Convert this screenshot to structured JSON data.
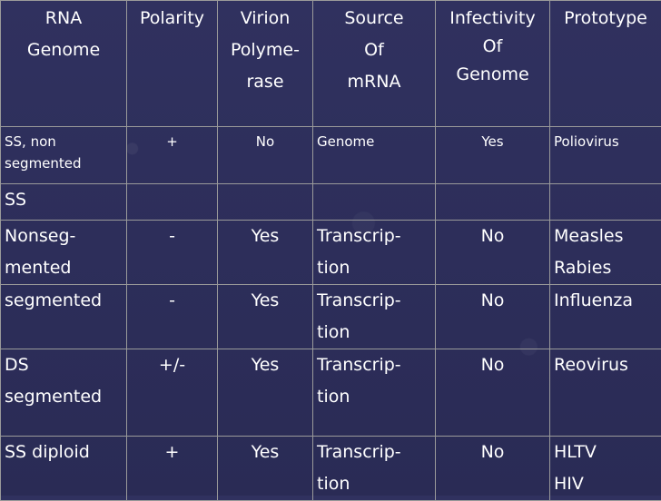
{
  "columns": [
    [
      "RNA",
      "Genome"
    ],
    [
      "Polarity"
    ],
    [
      "Virion",
      "Polyme-",
      "rase"
    ],
    [
      "Source",
      "Of",
      "mRNA"
    ],
    [
      "Infectivity",
      "Of",
      "Genome"
    ],
    [
      "Prototype"
    ]
  ],
  "rows": [
    {
      "genome": [
        "SS, non",
        "segmented"
      ],
      "polarity": "+",
      "polymerase": "No",
      "source": [
        "Genome"
      ],
      "infectivity": "Yes",
      "prototype": [
        "Poliovirus"
      ]
    },
    {
      "genome": [
        "SS"
      ],
      "polarity": "",
      "polymerase": "",
      "source": [
        ""
      ],
      "infectivity": "",
      "prototype": [
        ""
      ]
    },
    {
      "genome": [
        "Nonseg-",
        "mented"
      ],
      "polarity": "-",
      "polymerase": "Yes",
      "source": [
        "Transcrip-",
        "tion"
      ],
      "infectivity": "No",
      "prototype": [
        "Measles",
        "Rabies"
      ]
    },
    {
      "genome": [
        "segmented"
      ],
      "polarity": "-",
      "polymerase": "Yes",
      "source": [
        "Transcrip-",
        "tion"
      ],
      "infectivity": "No",
      "prototype": [
        "Influenza"
      ]
    },
    {
      "genome": [
        "DS",
        "segmented"
      ],
      "polarity": "+/-",
      "polymerase": "Yes",
      "source": [
        "Transcrip-",
        "tion"
      ],
      "infectivity": "No",
      "prototype": [
        "Reovirus"
      ]
    },
    {
      "genome": [
        "SS diploid"
      ],
      "polarity": "+",
      "polymerase": "Yes",
      "source": [
        "Transcrip-",
        "tion"
      ],
      "infectivity": "No",
      "prototype": [
        "HLTV",
        "HIV"
      ]
    }
  ]
}
